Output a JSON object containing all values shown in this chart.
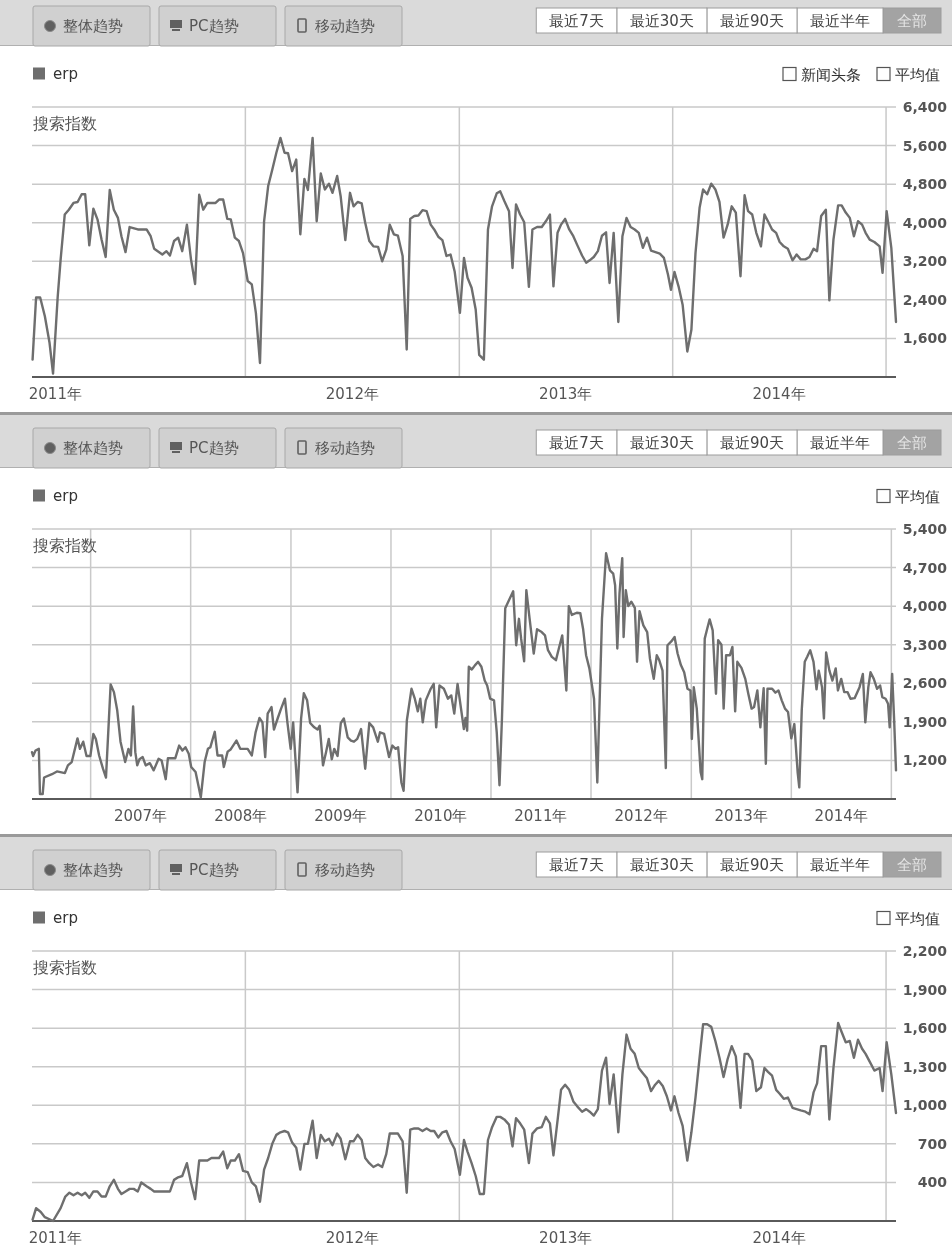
{
  "chart_data": [
    {
      "type": "line",
      "ylabel": "搜索指数",
      "annotations": [
        "整体趋势",
        "PC趋势",
        "移动趋势",
        "最近7天",
        "最近30天",
        "最近90天",
        "最近半年",
        "全部",
        "新闻头条",
        "平均值"
      ],
      "xlim": [
        "2011-01-01",
        "2015-01-18"
      ],
      "xticks": [
        {
          "value": "2011-02-10",
          "label": "2011年"
        },
        {
          "value": "2012-01-01",
          "label": null
        },
        {
          "value": "2012-07-02",
          "label": "2012年"
        },
        {
          "value": "2013-01-01",
          "label": null
        },
        {
          "value": "2013-07-02",
          "label": "2013年"
        },
        {
          "value": "2014-01-01",
          "label": null
        },
        {
          "value": "2014-07-02",
          "label": "2014年"
        },
        {
          "value": "2015-01-01",
          "label": null
        }
      ],
      "ylim": [
        800,
        6400
      ],
      "yticks": [
        {
          "value": 1600,
          "label": "1,600"
        },
        {
          "value": 2400,
          "label": "2,400"
        },
        {
          "value": 3200,
          "label": "3,200"
        },
        {
          "value": 4000,
          "label": "4,000"
        },
        {
          "value": 4800,
          "label": "4,800"
        },
        {
          "value": 5600,
          "label": "5,600"
        },
        {
          "value": 6400,
          "label": "6,400"
        }
      ],
      "grid": true,
      "legend": "top left",
      "series": [
        {
          "name": "erp",
          "color": "#6e6e6e",
          "x": [
            "2011-01-02",
            "2011-01-08",
            "2011-01-15",
            "2011-01-23",
            "2011-01-31",
            "2011-02-06",
            "2011-02-14",
            "2011-02-19",
            "2011-02-26",
            "2011-03-05",
            "2011-03-13",
            "2011-03-20",
            "2011-03-27",
            "2011-04-02",
            "2011-04-09",
            "2011-04-16",
            "2011-04-23",
            "2011-04-30",
            "2011-05-07",
            "2011-05-14",
            "2011-05-21",
            "2011-05-28",
            "2011-06-03",
            "2011-06-10",
            "2011-06-17",
            "2011-07-01",
            "2011-07-16",
            "2011-07-23",
            "2011-07-29",
            "2011-08-12",
            "2011-08-19",
            "2011-08-25",
            "2011-09-01",
            "2011-09-08",
            "2011-09-15",
            "2011-09-23",
            "2011-09-30",
            "2011-10-07",
            "2011-10-14",
            "2011-10-21",
            "2011-10-28",
            "2011-11-11",
            "2011-11-17",
            "2011-11-24",
            "2011-12-01",
            "2011-12-07",
            "2011-12-14",
            "2011-12-21",
            "2011-12-28",
            "2012-01-05",
            "2012-01-12",
            "2012-01-19",
            "2012-01-26",
            "2012-02-02",
            "2012-02-09",
            "2012-02-16",
            "2012-02-23",
            "2012-03-01",
            "2012-03-08",
            "2012-03-14",
            "2012-03-21",
            "2012-03-28",
            "2012-04-04",
            "2012-04-11",
            "2012-04-17",
            "2012-04-25",
            "2012-05-02",
            "2012-05-09",
            "2012-05-16",
            "2012-05-23",
            "2012-05-29",
            "2012-06-06",
            "2012-06-12",
            "2012-06-20",
            "2012-06-28",
            "2012-07-04",
            "2012-07-11",
            "2012-07-18",
            "2012-07-24",
            "2012-07-31",
            "2012-08-07",
            "2012-08-15",
            "2012-08-22",
            "2012-08-29",
            "2012-09-04",
            "2012-09-11",
            "2012-09-18",
            "2012-09-26",
            "2012-10-03",
            "2012-10-09",
            "2012-10-16",
            "2012-10-23",
            "2012-10-30",
            "2012-11-06",
            "2012-11-13",
            "2012-11-19",
            "2012-11-26",
            "2012-12-03",
            "2012-12-10",
            "2012-12-17",
            "2012-12-24",
            "2013-01-02",
            "2013-01-09",
            "2013-01-15",
            "2013-01-22",
            "2013-01-29",
            "2013-02-04",
            "2013-02-12",
            "2013-02-19",
            "2013-02-26",
            "2013-03-06",
            "2013-03-12",
            "2013-03-19",
            "2013-03-27",
            "2013-04-02",
            "2013-04-08",
            "2013-04-15",
            "2013-04-22",
            "2013-04-30",
            "2013-05-06",
            "2013-05-14",
            "2013-05-22",
            "2013-05-29",
            "2013-06-05",
            "2013-06-11",
            "2013-06-18",
            "2013-06-24",
            "2013-07-01",
            "2013-07-08",
            "2013-07-15",
            "2013-07-22",
            "2013-07-30",
            "2013-08-06",
            "2013-08-12",
            "2013-08-19",
            "2013-08-26",
            "2013-09-02",
            "2013-09-09",
            "2013-09-15",
            "2013-09-22",
            "2013-09-30",
            "2013-10-07",
            "2013-10-14",
            "2013-10-21",
            "2013-10-28",
            "2013-11-04",
            "2013-11-11",
            "2013-11-18",
            "2013-11-25",
            "2013-12-10",
            "2013-12-17",
            "2013-12-24",
            "2013-12-29",
            "2014-01-04",
            "2014-01-11",
            "2014-01-18",
            "2014-01-26",
            "2014-02-02",
            "2014-02-09",
            "2014-02-16",
            "2014-02-22",
            "2014-03-01",
            "2014-03-08",
            "2014-03-15",
            "2014-03-22",
            "2014-03-29",
            "2014-04-05",
            "2014-04-12",
            "2014-04-19",
            "2014-04-27",
            "2014-05-04",
            "2014-05-10",
            "2014-05-17",
            "2014-05-24",
            "2014-06-01",
            "2014-06-07",
            "2014-06-13",
            "2014-06-20",
            "2014-06-27",
            "2014-07-03",
            "2014-07-10",
            "2014-07-17",
            "2014-07-25",
            "2014-08-01",
            "2014-08-08",
            "2014-08-16",
            "2014-08-23",
            "2014-08-30",
            "2014-09-05",
            "2014-09-12",
            "2014-09-20",
            "2014-09-26",
            "2014-10-03",
            "2014-10-11",
            "2014-10-17",
            "2014-10-24",
            "2014-10-31",
            "2014-11-07",
            "2014-11-14",
            "2014-11-21",
            "2014-11-27",
            "2014-12-04",
            "2014-12-12",
            "2014-12-21",
            "2014-12-26",
            "2015-01-02",
            "2015-01-10",
            "2015-01-18"
          ],
          "values": [
            1160,
            2450,
            2450,
            2060,
            1510,
            870,
            2470,
            3240,
            4170,
            4270,
            4410,
            4430,
            4590,
            4590,
            3530,
            4290,
            4070,
            3650,
            3290,
            4680,
            4270,
            4100,
            3720,
            3390,
            3910,
            3860,
            3860,
            3720,
            3460,
            3340,
            3410,
            3320,
            3620,
            3690,
            3410,
            3960,
            3240,
            2730,
            4580,
            4270,
            4410,
            4410,
            4480,
            4480,
            4080,
            4070,
            3690,
            3620,
            3370,
            2790,
            2720,
            2130,
            1090,
            4030,
            4760,
            5100,
            5450,
            5760,
            5450,
            5440,
            5070,
            5310,
            3760,
            4910,
            4680,
            5760,
            4030,
            5020,
            4690,
            4810,
            4620,
            4970,
            4550,
            3640,
            4620,
            4340,
            4430,
            4400,
            4000,
            3620,
            3510,
            3500,
            3200,
            3440,
            3960,
            3760,
            3730,
            3310,
            1370,
            4080,
            4140,
            4150,
            4260,
            4240,
            3960,
            3860,
            3710,
            3640,
            3310,
            3340,
            2990,
            2130,
            3270,
            2860,
            2650,
            2200,
            1260,
            1160,
            3860,
            4340,
            4610,
            4650,
            4450,
            4240,
            3060,
            4380,
            4170,
            4010,
            2670,
            3860,
            3910,
            3910,
            4030,
            4170,
            2680,
            3790,
            3960,
            4080,
            3860,
            3720,
            3530,
            3320,
            3170,
            3220,
            3290,
            3410,
            3730,
            3800,
            2750,
            3790,
            1940,
            3720,
            4100,
            3910,
            3860,
            3790,
            3480,
            3690,
            3420,
            3360,
            3270,
            2920,
            2610,
            2980,
            2680,
            2300,
            1330,
            1780,
            3370,
            4310,
            4690,
            4590,
            4810,
            4690,
            4430,
            3690,
            3960,
            4340,
            4210,
            2890,
            4570,
            4240,
            4170,
            3790,
            3510,
            4170,
            4030,
            3860,
            3790,
            3600,
            3510,
            3460,
            3220,
            3340,
            3240,
            3240,
            3290,
            3460,
            3410,
            4140,
            4270,
            2390,
            3650,
            4360,
            4360,
            4210,
            4100,
            3720,
            4030,
            3960,
            3790,
            3650,
            3600,
            3510,
            2960,
            4240,
            3480,
            1940
          ]
        }
      ]
    },
    {
      "type": "line",
      "ylabel": "搜索指数",
      "annotations": [
        "整体趋势",
        "PC趋势",
        "移动趋势",
        "最近7天",
        "最近30天",
        "最近90天",
        "最近半年",
        "全部",
        "平均值"
      ],
      "xlim": [
        "2006-06-01",
        "2015-01-18"
      ],
      "xticks": [
        {
          "value": "2007-01-01",
          "label": null
        },
        {
          "value": "2007-07-02",
          "label": "2007年"
        },
        {
          "value": "2008-01-01",
          "label": null
        },
        {
          "value": "2008-07-02",
          "label": "2008年"
        },
        {
          "value": "2009-01-01",
          "label": null
        },
        {
          "value": "2009-07-02",
          "label": "2009年"
        },
        {
          "value": "2010-01-01",
          "label": null
        },
        {
          "value": "2010-07-02",
          "label": "2010年"
        },
        {
          "value": "2011-01-01",
          "label": null
        },
        {
          "value": "2011-07-02",
          "label": "2011年"
        },
        {
          "value": "2012-01-01",
          "label": null
        },
        {
          "value": "2012-07-02",
          "label": "2012年"
        },
        {
          "value": "2013-01-01",
          "label": null
        },
        {
          "value": "2013-07-02",
          "label": "2013年"
        },
        {
          "value": "2014-01-01",
          "label": null
        },
        {
          "value": "2014-07-02",
          "label": "2014年"
        },
        {
          "value": "2015-01-01",
          "label": null
        }
      ],
      "ylim": [
        500,
        5400
      ],
      "yticks": [
        {
          "value": 1200,
          "label": "1,200"
        },
        {
          "value": 1900,
          "label": "1,900"
        },
        {
          "value": 2600,
          "label": "2,600"
        },
        {
          "value": 3300,
          "label": "3,300"
        },
        {
          "value": 4000,
          "label": "4,000"
        },
        {
          "value": 4700,
          "label": "4,700"
        },
        {
          "value": 5400,
          "label": "5,400"
        }
      ],
      "grid": true,
      "legend": "top left",
      "series": [
        {
          "name": "erp",
          "color": "#6e6e6e",
          "x": [
            "2006-06-01",
            "2006-06-05",
            "2006-06-14",
            "2006-06-26",
            "2006-06-30",
            "2006-07-10",
            "2006-07-15",
            "2006-08-13",
            "2006-08-31",
            "2006-09-29",
            "2006-10-10",
            "2006-10-24",
            "2006-11-14",
            "2006-11-23",
            "2006-12-05",
            "2006-12-17",
            "2006-12-31",
            "2007-01-11",
            "2007-01-20",
            "2007-02-01",
            "2007-02-15",
            "2007-02-26",
            "2007-03-15",
            "2007-03-27",
            "2007-04-08",
            "2007-04-20",
            "2007-05-07",
            "2007-05-19",
            "2007-05-28",
            "2007-06-05",
            "2007-06-13",
            "2007-06-20",
            "2007-06-28",
            "2007-07-10",
            "2007-07-21",
            "2007-08-05",
            "2007-08-19",
            "2007-09-06",
            "2007-09-17",
            "2007-10-02",
            "2007-10-10",
            "2007-11-06",
            "2007-11-20",
            "2007-12-02",
            "2007-12-13",
            "2007-12-25",
            "2008-01-03",
            "2008-01-19",
            "2008-02-07",
            "2008-02-21",
            "2008-03-04",
            "2008-03-13",
            "2008-03-29",
            "2008-04-08",
            "2008-04-25",
            "2008-05-01",
            "2008-05-15",
            "2008-05-26",
            "2008-06-16",
            "2008-06-30",
            "2008-07-27",
            "2008-08-11",
            "2008-08-25",
            "2008-09-08",
            "2008-09-19",
            "2008-09-29",
            "2008-10-08",
            "2008-10-22",
            "2008-10-31",
            "2008-11-14",
            "2008-11-26",
            "2008-12-10",
            "2008-12-19",
            "2008-12-31",
            "2009-01-09",
            "2009-01-25",
            "2009-02-07",
            "2009-02-17",
            "2009-03-01",
            "2009-03-12",
            "2009-03-27",
            "2009-04-08",
            "2009-04-16",
            "2009-04-28",
            "2009-05-09",
            "2009-05-19",
            "2009-05-30",
            "2009-06-08",
            "2009-06-20",
            "2009-07-02",
            "2009-07-13",
            "2009-07-27",
            "2009-08-08",
            "2009-08-19",
            "2009-08-31",
            "2009-09-14",
            "2009-09-29",
            "2009-10-14",
            "2009-10-28",
            "2009-11-14",
            "2009-11-22",
            "2009-12-07",
            "2009-12-25",
            "2010-01-06",
            "2010-01-18",
            "2010-01-27",
            "2010-02-08",
            "2010-02-16",
            "2010-02-28",
            "2010-03-17",
            "2010-03-29",
            "2010-04-09",
            "2010-04-18",
            "2010-04-27",
            "2010-05-08",
            "2010-05-26",
            "2010-06-06",
            "2010-06-15",
            "2010-06-27",
            "2010-07-13",
            "2010-07-28",
            "2010-08-09",
            "2010-08-20",
            "2010-09-01",
            "2010-09-24",
            "2010-09-30",
            "2010-10-06",
            "2010-10-12",
            "2010-10-23",
            "2010-11-04",
            "2010-11-15",
            "2010-11-27",
            "2010-12-09",
            "2010-12-18",
            "2010-12-29",
            "2011-01-12",
            "2011-01-22",
            "2011-02-01",
            "2011-02-10",
            "2011-02-22",
            "2011-03-05",
            "2011-03-23",
            "2011-04-03",
            "2011-04-13",
            "2011-04-21",
            "2011-05-02",
            "2011-05-10",
            "2011-05-22",
            "2011-06-06",
            "2011-06-18",
            "2011-07-05",
            "2011-07-17",
            "2011-07-28",
            "2011-08-11",
            "2011-08-26",
            "2011-09-07",
            "2011-09-18",
            "2011-10-03",
            "2011-10-12",
            "2011-10-23",
            "2011-11-10",
            "2011-11-23",
            "2011-12-03",
            "2011-12-14",
            "2011-12-26",
            "2012-01-12",
            "2012-01-24",
            "2012-02-10",
            "2012-02-25",
            "2012-03-10",
            "2012-03-22",
            "2012-03-29",
            "2012-04-06",
            "2012-04-14",
            "2012-04-24",
            "2012-04-29",
            "2012-05-07",
            "2012-05-16",
            "2012-05-27",
            "2012-06-09",
            "2012-06-17",
            "2012-06-26",
            "2012-07-10",
            "2012-07-24",
            "2012-08-03",
            "2012-08-17",
            "2012-08-28",
            "2012-09-06",
            "2012-09-18",
            "2012-09-30",
            "2012-10-06",
            "2012-10-20",
            "2012-11-01",
            "2012-11-12",
            "2012-11-24",
            "2012-12-06",
            "2012-12-18",
            "2012-12-29",
            "2013-01-03",
            "2013-01-10",
            "2013-01-21",
            "2013-02-04",
            "2013-02-10",
            "2013-02-19",
            "2013-02-28",
            "2013-03-09",
            "2013-03-20",
            "2013-04-01",
            "2013-04-09",
            "2013-04-21",
            "2013-04-29",
            "2013-05-08",
            "2013-05-22",
            "2013-05-31",
            "2013-06-10",
            "2013-06-18",
            "2013-07-03",
            "2013-07-17",
            "2013-07-28",
            "2013-08-09",
            "2013-08-18",
            "2013-08-30",
            "2013-09-10",
            "2013-09-22",
            "2013-09-30",
            "2013-10-06",
            "2013-10-23",
            "2013-11-04",
            "2013-11-15",
            "2013-11-27",
            "2013-12-09",
            "2013-12-20",
            "2014-01-01",
            "2014-01-12",
            "2014-01-24",
            "2014-01-30",
            "2014-02-08",
            "2014-02-19",
            "2014-02-28",
            "2014-03-11",
            "2014-03-23",
            "2014-04-03",
            "2014-04-11",
            "2014-04-23",
            "2014-04-30",
            "2014-05-08",
            "2014-05-20",
            "2014-05-31",
            "2014-06-12",
            "2014-06-20",
            "2014-07-02",
            "2014-07-13",
            "2014-07-25",
            "2014-08-05",
            "2014-08-20",
            "2014-09-07",
            "2014-09-19",
            "2014-09-28",
            "2014-10-09",
            "2014-10-17",
            "2014-10-29",
            "2014-11-10",
            "2014-11-21",
            "2014-11-29",
            "2014-12-11",
            "2014-12-20",
            "2014-12-26",
            "2015-01-04",
            "2015-01-11",
            "2015-01-18"
          ],
          "values": [
            1350,
            1280,
            1380,
            1410,
            590,
            590,
            890,
            950,
            1000,
            970,
            1110,
            1170,
            1600,
            1410,
            1540,
            1280,
            1280,
            1680,
            1590,
            1290,
            1050,
            890,
            2580,
            2440,
            2110,
            1540,
            1170,
            1410,
            1290,
            2180,
            1350,
            1110,
            1220,
            1260,
            1110,
            1150,
            1020,
            1230,
            1200,
            860,
            1240,
            1240,
            1470,
            1380,
            1440,
            1320,
            1080,
            990,
            530,
            1170,
            1410,
            1440,
            1720,
            1290,
            1290,
            1080,
            1360,
            1400,
            1560,
            1410,
            1410,
            1290,
            1710,
            1970,
            1890,
            1260,
            2050,
            2170,
            1760,
            1970,
            2140,
            2320,
            1890,
            1410,
            1890,
            620,
            1960,
            2420,
            2290,
            1880,
            1800,
            1760,
            1830,
            1110,
            1350,
            1590,
            1220,
            1410,
            1280,
            1880,
            1960,
            1620,
            1560,
            1540,
            1590,
            1770,
            1050,
            1880,
            1800,
            1540,
            1710,
            1680,
            1260,
            1470,
            1410,
            1440,
            800,
            650,
            1930,
            2500,
            2320,
            2090,
            2320,
            1890,
            2290,
            2500,
            2590,
            1800,
            2560,
            2500,
            2320,
            2380,
            2050,
            2590,
            1770,
            1970,
            1740,
            2900,
            2850,
            2930,
            2990,
            2900,
            2650,
            2560,
            2320,
            2290,
            1710,
            750,
            1960,
            3960,
            4080,
            4270,
            3290,
            3770,
            3410,
            3000,
            4290,
            3770,
            3140,
            3580,
            3530,
            3470,
            3200,
            3080,
            3020,
            3260,
            3470,
            2470,
            4000,
            3840,
            3880,
            3870,
            3590,
            3110,
            2870,
            2320,
            800,
            3770,
            4960,
            4650,
            4590,
            4380,
            3230,
            4230,
            4870,
            3440,
            4290,
            4000,
            4080,
            3970,
            2990,
            3910,
            3650,
            3530,
            3050,
            2680,
            3110,
            3020,
            2830,
            1060,
            3290,
            3360,
            3440,
            3140,
            2930,
            2800,
            2500,
            2470,
            1590,
            2530,
            2140,
            990,
            860,
            3410,
            3590,
            3760,
            3560,
            2410,
            3380,
            3300,
            2140,
            3110,
            3110,
            3260,
            2090,
            2990,
            2880,
            2680,
            2410,
            2140,
            2170,
            2470,
            1800,
            2510,
            1140,
            2500,
            2500,
            2430,
            2470,
            2290,
            2140,
            2080,
            1600,
            1860,
            990,
            710,
            2110,
            2990,
            3080,
            3200,
            2990,
            2490,
            2830,
            2530,
            1960,
            3160,
            2830,
            2650,
            2870,
            2470,
            2680,
            2440,
            2440,
            2320,
            2330,
            2530,
            2770,
            1890,
            2530,
            2800,
            2680,
            2500,
            2560,
            2350,
            2320,
            2230,
            1800,
            2770,
            1960,
            1020
          ]
        }
      ]
    },
    {
      "type": "line",
      "ylabel": "搜索指数",
      "annotations": [
        "整体趋势",
        "PC趋势",
        "移动趋势",
        "最近7天",
        "最近30天",
        "最近90天",
        "最近半年",
        "全部",
        "平均值"
      ],
      "xlim": [
        "2011-01-01",
        "2015-01-18"
      ],
      "xticks": [
        {
          "value": "2011-02-10",
          "label": "2011年"
        },
        {
          "value": "2012-01-01",
          "label": null
        },
        {
          "value": "2012-07-02",
          "label": "2012年"
        },
        {
          "value": "2013-01-01",
          "label": null
        },
        {
          "value": "2013-07-02",
          "label": "2013年"
        },
        {
          "value": "2014-01-01",
          "label": null
        },
        {
          "value": "2014-07-02",
          "label": "2014年"
        },
        {
          "value": "2015-01-01",
          "label": null
        }
      ],
      "ylim": [
        100,
        2200
      ],
      "yticks": [
        400,
        700,
        {
          "value": 1000,
          "label": "1,000"
        },
        {
          "value": 1300,
          "label": "1,300"
        },
        {
          "value": 1600,
          "label": "1,600"
        },
        {
          "value": 1900,
          "label": "1,900"
        },
        {
          "value": 2200,
          "label": "2,200"
        }
      ],
      "grid": true,
      "legend": "top left",
      "series": [
        {
          "name": "erp",
          "color": "#6e6e6e",
          "x": [
            "2011-01-02",
            "2011-01-08",
            "2011-01-16",
            "2011-01-23",
            "2011-02-06",
            "2011-02-19",
            "2011-02-27",
            "2011-03-06",
            "2011-03-13",
            "2011-03-20",
            "2011-03-27",
            "2011-04-02",
            "2011-04-09",
            "2011-04-16",
            "2011-04-23",
            "2011-04-30",
            "2011-05-07",
            "2011-05-14",
            "2011-05-21",
            "2011-05-28",
            "2011-06-03",
            "2011-06-10",
            "2011-06-17",
            "2011-06-24",
            "2011-07-01",
            "2011-07-07",
            "2011-07-16",
            "2011-07-23",
            "2011-07-29",
            "2011-08-12",
            "2011-08-25",
            "2011-09-01",
            "2011-09-08",
            "2011-09-15",
            "2011-09-23",
            "2011-09-30",
            "2011-10-07",
            "2011-10-14",
            "2011-10-28",
            "2011-11-04",
            "2011-11-17",
            "2011-11-24",
            "2011-12-01",
            "2011-12-07",
            "2011-12-14",
            "2011-12-21",
            "2011-12-28",
            "2012-01-05",
            "2012-01-12",
            "2012-01-19",
            "2012-01-26",
            "2012-02-02",
            "2012-02-09",
            "2012-02-16",
            "2012-02-23",
            "2012-03-01",
            "2012-03-08",
            "2012-03-14",
            "2012-03-21",
            "2012-03-28",
            "2012-04-04",
            "2012-04-11",
            "2012-04-17",
            "2012-04-25",
            "2012-05-02",
            "2012-05-09",
            "2012-05-16",
            "2012-05-23",
            "2012-05-29",
            "2012-06-06",
            "2012-06-12",
            "2012-06-20",
            "2012-06-28",
            "2012-07-04",
            "2012-07-11",
            "2012-07-18",
            "2012-07-24",
            "2012-07-31",
            "2012-08-07",
            "2012-08-15",
            "2012-08-22",
            "2012-08-29",
            "2012-09-04",
            "2012-09-11",
            "2012-09-18",
            "2012-09-26",
            "2012-10-03",
            "2012-10-09",
            "2012-10-16",
            "2012-10-23",
            "2012-10-30",
            "2012-11-06",
            "2012-11-13",
            "2012-11-19",
            "2012-11-26",
            "2012-12-03",
            "2012-12-10",
            "2012-12-17",
            "2012-12-24",
            "2013-01-02",
            "2013-01-09",
            "2013-01-15",
            "2013-01-22",
            "2013-01-29",
            "2013-02-05",
            "2013-02-12",
            "2013-02-19",
            "2013-02-26",
            "2013-03-06",
            "2013-03-12",
            "2013-03-19",
            "2013-03-27",
            "2013-04-02",
            "2013-04-08",
            "2013-04-15",
            "2013-04-22",
            "2013-04-30",
            "2013-05-06",
            "2013-05-14",
            "2013-05-22",
            "2013-05-29",
            "2013-06-05",
            "2013-06-11",
            "2013-06-18",
            "2013-06-24",
            "2013-07-01",
            "2013-07-08",
            "2013-07-15",
            "2013-07-22",
            "2013-07-30",
            "2013-08-06",
            "2013-08-12",
            "2013-08-19",
            "2013-08-26",
            "2013-09-02",
            "2013-09-09",
            "2013-09-15",
            "2013-09-22",
            "2013-09-30",
            "2013-10-07",
            "2013-10-14",
            "2013-10-21",
            "2013-10-28",
            "2013-11-04",
            "2013-11-11",
            "2013-11-18",
            "2013-11-25",
            "2013-12-02",
            "2013-12-08",
            "2013-12-15",
            "2013-12-22",
            "2013-12-29",
            "2014-01-04",
            "2014-01-11",
            "2014-01-18",
            "2014-01-26",
            "2014-02-02",
            "2014-02-09",
            "2014-02-16",
            "2014-02-22",
            "2014-03-01",
            "2014-03-08",
            "2014-03-15",
            "2014-03-22",
            "2014-03-29",
            "2014-04-05",
            "2014-04-12",
            "2014-04-19",
            "2014-04-27",
            "2014-05-04",
            "2014-05-10",
            "2014-05-17",
            "2014-05-24",
            "2014-06-01",
            "2014-06-07",
            "2014-06-13",
            "2014-06-20",
            "2014-06-27",
            "2014-07-03",
            "2014-07-10",
            "2014-07-17",
            "2014-07-25",
            "2014-08-01",
            "2014-08-08",
            "2014-08-16",
            "2014-08-23",
            "2014-08-30",
            "2014-09-05",
            "2014-09-12",
            "2014-09-20",
            "2014-09-26",
            "2014-10-03",
            "2014-10-11",
            "2014-10-17",
            "2014-10-24",
            "2014-10-31",
            "2014-11-07",
            "2014-11-14",
            "2014-11-21",
            "2014-11-27",
            "2014-12-04",
            "2014-12-12",
            "2014-12-21",
            "2014-12-26",
            "2015-01-02",
            "2015-01-10",
            "2015-01-18"
          ],
          "values": [
            110,
            200,
            170,
            130,
            100,
            200,
            290,
            320,
            300,
            320,
            300,
            320,
            280,
            330,
            330,
            290,
            290,
            370,
            420,
            350,
            310,
            330,
            350,
            350,
            330,
            400,
            370,
            350,
            330,
            330,
            330,
            420,
            440,
            450,
            550,
            400,
            270,
            570,
            570,
            590,
            590,
            640,
            510,
            570,
            570,
            620,
            490,
            480,
            400,
            370,
            250,
            500,
            590,
            700,
            770,
            790,
            800,
            790,
            710,
            670,
            500,
            700,
            700,
            880,
            590,
            770,
            720,
            740,
            690,
            780,
            740,
            580,
            720,
            720,
            770,
            730,
            590,
            550,
            520,
            540,
            520,
            620,
            780,
            780,
            780,
            720,
            320,
            810,
            820,
            820,
            800,
            820,
            800,
            800,
            750,
            790,
            800,
            720,
            660,
            460,
            730,
            640,
            550,
            450,
            310,
            310,
            730,
            830,
            910,
            910,
            890,
            850,
            680,
            900,
            860,
            810,
            550,
            780,
            820,
            830,
            910,
            860,
            610,
            880,
            1120,
            1160,
            1120,
            1030,
            990,
            950,
            970,
            950,
            920,
            970,
            1270,
            1370,
            1010,
            1240,
            790,
            1240,
            1550,
            1440,
            1400,
            1290,
            1250,
            1210,
            1110,
            1160,
            1190,
            1150,
            1070,
            960,
            1070,
            940,
            840,
            570,
            790,
            1060,
            1370,
            1630,
            1630,
            1610,
            1500,
            1370,
            1220,
            1360,
            1460,
            1380,
            980,
            1400,
            1400,
            1350,
            1110,
            1140,
            1290,
            1260,
            1230,
            1120,
            1090,
            1050,
            1060,
            980,
            970,
            960,
            950,
            930,
            1100,
            1170,
            1460,
            1460,
            890,
            1290,
            1640,
            1570,
            1490,
            1500,
            1370,
            1510,
            1440,
            1400,
            1340,
            1270,
            1290,
            1110,
            1490,
            1240,
            940
          ]
        }
      ]
    }
  ]
}
